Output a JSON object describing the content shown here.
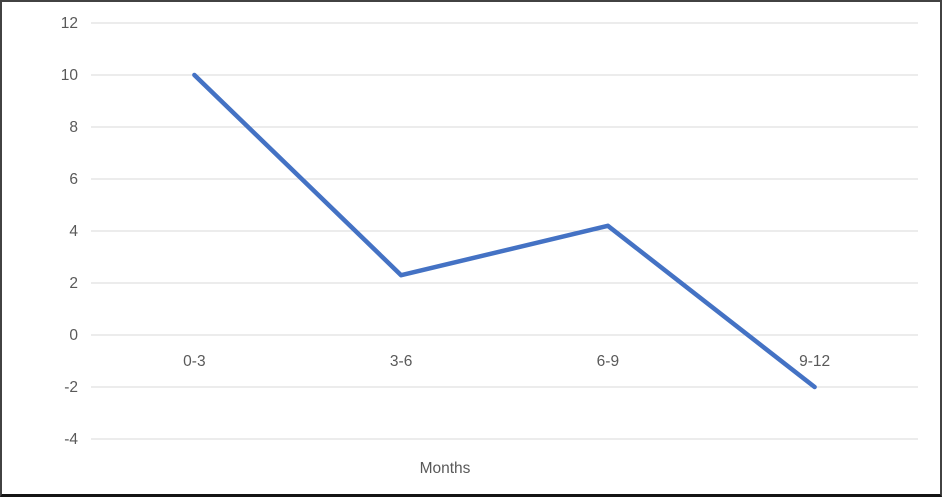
{
  "chart_data": {
    "type": "line",
    "categories": [
      "0-3",
      "3-6",
      "6-9",
      "9-12"
    ],
    "values": [
      10,
      2.3,
      4.2,
      -2
    ],
    "xlabel": "Months",
    "ylim": [
      -4,
      12
    ],
    "yticks": [
      12,
      10,
      8,
      6,
      4,
      2,
      0,
      -2,
      -4
    ],
    "grid": true,
    "legend": false,
    "colors": {
      "line": "#4472C4",
      "gridline": "#D9D9D9",
      "labels": "#595959",
      "background": "#FFFFFF",
      "frame_border": "#424242"
    }
  }
}
